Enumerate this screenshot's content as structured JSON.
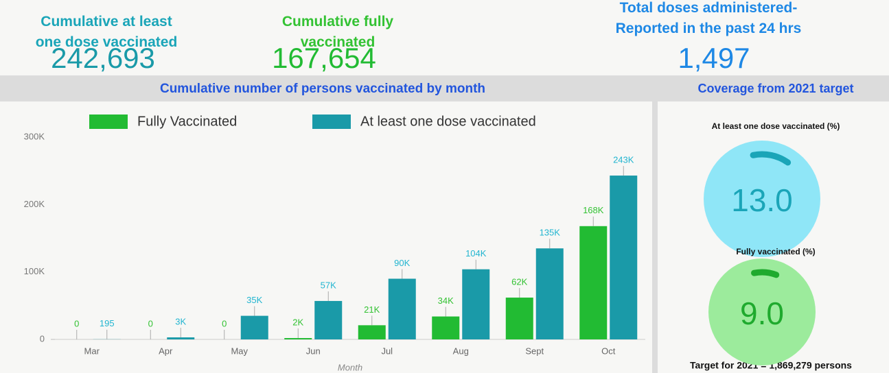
{
  "kpis": [
    {
      "label": "Cumulative at least one dose vaccinated",
      "value": "242,693"
    },
    {
      "label": "Cumulative fully vaccinated",
      "value": "167,654"
    },
    {
      "label": "Total doses administered- Reported in the past 24 hrs",
      "value": "1,497"
    }
  ],
  "chart_data": {
    "type": "bar",
    "title": "Cumulative number of persons vaccinated by month",
    "x_label": "Month",
    "categories": [
      "Mar",
      "Apr",
      "May",
      "Jun",
      "Jul",
      "Aug",
      "Sept",
      "Oct"
    ],
    "series": [
      {
        "name": "Fully Vaccinated",
        "color": "#22bb33",
        "values": [
          0,
          0,
          0,
          2000,
          21000,
          34000,
          62000,
          168000
        ],
        "value_labels": [
          "0",
          "0",
          "0",
          "2K",
          "21K",
          "34K",
          "62K",
          "168K"
        ]
      },
      {
        "name": "At least one dose vaccinated",
        "color": "#1a9aa8",
        "values": [
          195,
          3000,
          35000,
          57000,
          90000,
          104000,
          135000,
          243000
        ],
        "value_labels": [
          "195",
          "3K",
          "35K",
          "57K",
          "90K",
          "104K",
          "135K",
          "243K"
        ]
      }
    ],
    "ylim": [
      0,
      300000
    ],
    "yticks": [
      0,
      {
        "value": 100000,
        "label": "100K"
      },
      {
        "value": 200000,
        "label": "200K"
      },
      {
        "value": 300000,
        "label": "300K"
      }
    ],
    "legend": "top"
  },
  "coverage": {
    "title": "Coverage from 2021 target",
    "range": [
      0,
      100
    ],
    "gauges": [
      {
        "label": "At least one dose vaccinated  (%)",
        "value": 13.0,
        "value_label": "13.0",
        "color": "#1aa5b8",
        "fill": "#8fe6f7"
      },
      {
        "label": "Fully vaccinated  (%)",
        "value": 9.0,
        "value_label": "9.0",
        "color": "#1faa2e",
        "fill": "#9ceb9c"
      }
    ],
    "footer": "Target for 2021 = 1,869,279 persons"
  }
}
